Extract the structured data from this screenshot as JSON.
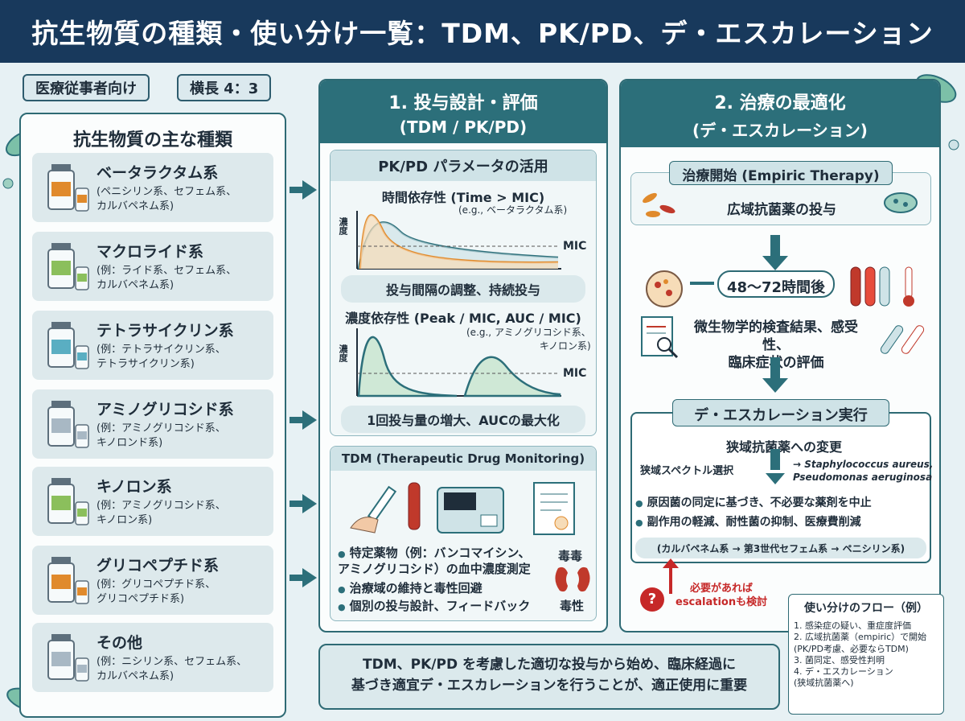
{
  "title": "抗生物質の種類・使い分け一覧：TDM、PK/PD、デ・エスカレーション",
  "tags": [
    "医療従事者向け",
    "横長 4：3"
  ],
  "left_panel": {
    "title": "抗生物質の主な種類",
    "types": [
      {
        "name": "ベータラクタム系",
        "desc": "(ペニシリン系、セフェム系、\nカルバペネム系)"
      },
      {
        "name": "マクロライド系",
        "desc": "(例：ライド系、セフェム系、\nカルバペネム系)"
      },
      {
        "name": "テトラサイクリン系",
        "desc": "(例：テトラサイクリン系、\nテトラサイクリン系)"
      },
      {
        "name": "アミノグリコシド系",
        "desc": "(例：アミノグリコシド系、\nキノロンド系)"
      },
      {
        "name": "キノロン系",
        "desc": "(例：アミノグリコシド系、\nキノロン系)"
      },
      {
        "name": "グリコペプチド系",
        "desc": "(例：グリコペプチド系、\nグリコペプチド系)"
      },
      {
        "name": "その他",
        "desc": "(例：ニシリン系、セフェム系、\nカルバペネム系)"
      }
    ]
  },
  "middle_panel": {
    "title1": "1. 投与設計・評価",
    "title2": "(TDM / PK/PD)",
    "pkpd_title": "PK/PD パラメータの活用",
    "time_dep_title": "時間依存性 (Time > MIC)",
    "time_dep_example": "(e.g., ベータラクタム系)",
    "y_label": "濃度",
    "mic": "MIC",
    "time_dep_action": "投与間隔の調整、持続投与",
    "conc_dep_title": "濃度依存性 (Peak / MIC, AUC / MIC)",
    "conc_dep_example": "(e.g., アミノグリコシド系、\nキノロン系)",
    "conc_dep_action": "1回投与量の増大、AUCの最大化",
    "tdm_title": "TDM (Therapeutic Drug Monitoring)",
    "tdm_bullets": [
      "特定薬物（例：バンコマイシン、\nアミノグリコシド）の血中濃度測定",
      "治療域の維持と毒性回避",
      "個別の投与設計、フィードバック"
    ],
    "toxicity": "毒毒",
    "toxicity2": "毒性"
  },
  "right_panel": {
    "title1": "2. 治療の最適化",
    "title2": "(デ・エスカレーション)",
    "start_title": "治療開始 (Empiric Therapy)",
    "start_text": "広域抗菌薬の投与",
    "time_after": "48〜72時間後",
    "eval_text": "微生物学的検査結果、感受性、\n臨床症状の評価",
    "deesc_title": "デ・エスカレーション実行",
    "narrow_change": "狭域抗菌薬への変更",
    "narrow_select": "狭域スペクトル選択",
    "organisms": "→ Staphylococcus aureus,\nPseudomonas aeruginosa",
    "bullets": [
      "原因菌の同定に基づき、不必要な薬剤を中止",
      "副作用の軽減、耐性菌の抑制、医療費削減"
    ],
    "example_chain": "(カルバペネム系 → 第3世代セフェム系 → ペニシリン系)",
    "escalation_note": "必要があれば\nescalationも検討"
  },
  "bottom_message": "TDM、PK/PD を考慮した適切な投与から始め、臨床経過に\n基づき適宜デ・エスカレーションを行うことが、適正使用に重要",
  "flow_box": {
    "title": "使い分けのフロー（例）",
    "steps": [
      "1. 感染症の疑い、重症度評価",
      "2. 広域抗菌薬（empiric）で開始\n(PK/PD考慮、必要ならTDM)",
      "3. 菌同定、感受性判明",
      "4. デ・エスカレーション\n(狭域抗菌薬へ)"
    ]
  },
  "colors": {
    "header": "#18395c",
    "accent": "#2c6f7a",
    "curve_orange": "#e08a2c",
    "curve_teal": "#2c6f7a",
    "warning": "#c62828"
  }
}
